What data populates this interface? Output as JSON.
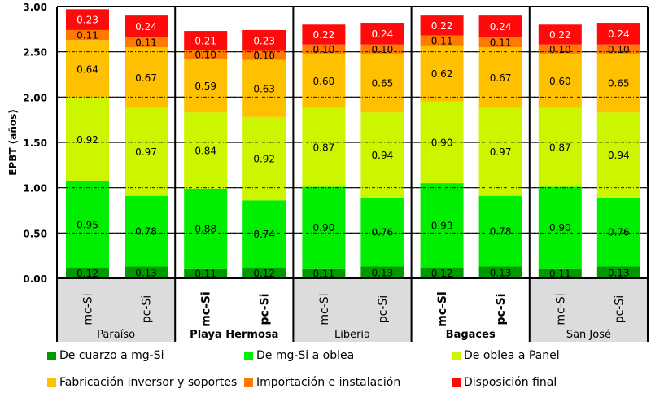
{
  "chart_data": {
    "type": "bar",
    "stacked": true,
    "ylabel": "EPBT (años)",
    "ylim": [
      0,
      3.0
    ],
    "yticks": [
      "0.00",
      "0.50",
      "1.00",
      "1.50",
      "2.00",
      "2.50",
      "3.00"
    ],
    "grid": true,
    "legend_position": "bottom",
    "groups": [
      {
        "name": "Paraíso",
        "shaded": true,
        "bars": [
          {
            "label": "mc-Si",
            "values": [
              0.12,
              0.95,
              0.92,
              0.64,
              0.11,
              0.23
            ]
          },
          {
            "label": "pc-Si",
            "values": [
              0.13,
              0.78,
              0.97,
              0.67,
              0.11,
              0.24
            ]
          }
        ]
      },
      {
        "name": "Playa Hermosa",
        "shaded": false,
        "bars": [
          {
            "label": "mc-Si",
            "values": [
              0.11,
              0.88,
              0.84,
              0.59,
              0.1,
              0.21
            ]
          },
          {
            "label": "pc-Si",
            "values": [
              0.12,
              0.74,
              0.92,
              0.63,
              0.1,
              0.23
            ]
          }
        ]
      },
      {
        "name": "Liberia",
        "shaded": true,
        "bars": [
          {
            "label": "mc-Si",
            "values": [
              0.11,
              0.9,
              0.87,
              0.6,
              0.1,
              0.22
            ]
          },
          {
            "label": "pc-Si",
            "values": [
              0.13,
              0.76,
              0.94,
              0.65,
              0.1,
              0.24
            ]
          }
        ]
      },
      {
        "name": "Bagaces",
        "shaded": false,
        "bars": [
          {
            "label": "mc-Si",
            "values": [
              0.12,
              0.93,
              0.9,
              0.62,
              0.11,
              0.22
            ]
          },
          {
            "label": "pc-Si",
            "values": [
              0.13,
              0.78,
              0.97,
              0.67,
              0.11,
              0.24
            ]
          }
        ]
      },
      {
        "name": "San José",
        "shaded": true,
        "bars": [
          {
            "label": "mc-Si",
            "values": [
              0.11,
              0.9,
              0.87,
              0.6,
              0.1,
              0.22
            ]
          },
          {
            "label": "pc-Si",
            "values": [
              0.13,
              0.76,
              0.94,
              0.65,
              0.1,
              0.24
            ]
          }
        ]
      }
    ],
    "series": [
      {
        "name": "De cuarzo a mg-Si",
        "color": "#009a00"
      },
      {
        "name": "De mg-Si a oblea",
        "color": "#00ee00"
      },
      {
        "name": "De oblea a Panel",
        "color": "#ccf500"
      },
      {
        "name": "Fabricación inversor y soportes",
        "color": "#ffc000"
      },
      {
        "name": "Importación e instalación",
        "color": "#ff7a00"
      },
      {
        "name": "Disposición final",
        "color": "#ff0a0a"
      }
    ]
  }
}
